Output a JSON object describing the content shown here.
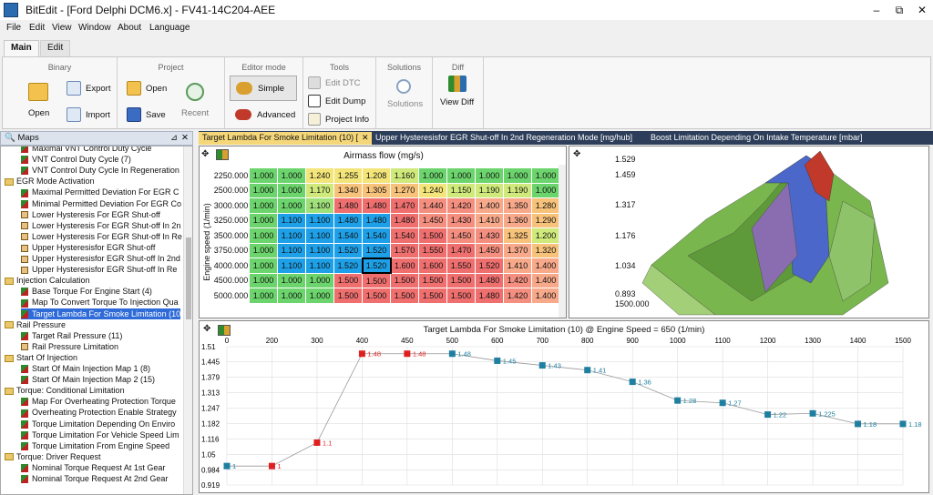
{
  "title": "BitEdit - [Ford Delphi DCM6.x] - FV41-14C204-AEE",
  "window_buttons": [
    "–",
    "⧉",
    "✕"
  ],
  "menu": [
    "File",
    "Edit",
    "View",
    "Window",
    "About",
    "Language"
  ],
  "ribbon_tabs": [
    "Main",
    "Edit"
  ],
  "ribbon": {
    "binary": {
      "title": "Binary",
      "open": "Open",
      "export": "Export",
      "import": "Import"
    },
    "project": {
      "title": "Project",
      "open": "Open",
      "save": "Save",
      "recent": "Recent"
    },
    "editor_mode": {
      "title": "Editor mode",
      "simple": "Simple",
      "advanced": "Advanced"
    },
    "tools": {
      "title": "Tools",
      "edit_dtc": "Edit DTC",
      "edit_dump": "Edit Dump",
      "project_info": "Project Info"
    },
    "solutions": {
      "title": "Solutions",
      "solutions": "Solutions"
    },
    "diff": {
      "title": "Diff",
      "view_diff": "View Diff"
    }
  },
  "maps_panel": {
    "title": "Maps",
    "items": [
      {
        "t": "map",
        "l": "Maximal VNT Control Duty Cycle"
      },
      {
        "t": "map",
        "l": "VNT Control Duty Cycle (7)"
      },
      {
        "t": "map",
        "l": "VNT Control Duty Cycle In Regeneration"
      },
      {
        "t": "folder",
        "l": "EGR Mode Activation"
      },
      {
        "t": "map",
        "l": "Maximal Permitted Deviation For EGR C"
      },
      {
        "t": "map",
        "l": "Minimal Permitted Deviation For EGR Co"
      },
      {
        "t": "table",
        "l": "Lower Hysteresis For EGR Shut-off"
      },
      {
        "t": "table",
        "l": "Lower Hysteresis For EGR Shut-off In 2n"
      },
      {
        "t": "table",
        "l": "Lower Hysteresis For EGR Shut-off In Re"
      },
      {
        "t": "table",
        "l": "Upper Hysteresisfor EGR Shut-off"
      },
      {
        "t": "table",
        "l": "Upper Hysteresisfor EGR Shut-off In 2nd"
      },
      {
        "t": "table",
        "l": "Upper Hysteresisfor EGR Shut-off In Re"
      },
      {
        "t": "folder",
        "l": "Injection Calculation"
      },
      {
        "t": "map",
        "l": "Base Torque For Engine Start (4)"
      },
      {
        "t": "map",
        "l": "Map To Convert Torque To Injection Qua"
      },
      {
        "t": "map",
        "l": "Target Lambda For Smoke Limitation (10"
      },
      {
        "t": "folder",
        "l": "Rail Pressure"
      },
      {
        "t": "map",
        "l": "Target Rail Pressure (11)"
      },
      {
        "t": "table",
        "l": "Rail Pressure Limitation"
      },
      {
        "t": "folder",
        "l": "Start Of Injection"
      },
      {
        "t": "map",
        "l": "Start Of Main Injection Map 1 (8)"
      },
      {
        "t": "map",
        "l": "Start Of Main Injection Map 2 (15)"
      },
      {
        "t": "folder",
        "l": "Torque: Conditional Limitation"
      },
      {
        "t": "map",
        "l": "Map For Overheating Protection Torque"
      },
      {
        "t": "map",
        "l": "Overheating Protection Enable Strategy"
      },
      {
        "t": "map",
        "l": "Torque Limitation Depending On Enviro"
      },
      {
        "t": "map",
        "l": "Torque Limitation For Vehicle Speed Lim"
      },
      {
        "t": "map",
        "l": "Torque Limitation From Engine Speed"
      },
      {
        "t": "folder",
        "l": "Torque: Driver Request"
      },
      {
        "t": "map",
        "l": "Nominal Torque Request At 1st Gear"
      },
      {
        "t": "map",
        "l": "Nominal Torque Request At 2nd Gear"
      }
    ]
  },
  "doc_tabs": [
    "Target Lambda For Smoke Limitation (10) [",
    "✕",
    "Upper Hysteresisfor EGR Shut-off In 2nd Regeneration Mode [mg/hub]",
    "Boost Limitation Depending On Intake Temperature [mbar]"
  ],
  "grid": {
    "x_title": "Airmass flow (mg/s)",
    "y_title": "Engine speed (1/min)",
    "rows": [
      {
        "rpm": "2250.000",
        "v": [
          "1.000",
          "1.000",
          "1.240",
          "1.255",
          "1.208",
          "1.160",
          "1.000",
          "1.000",
          "1.000",
          "1.000",
          "1.000"
        ]
      },
      {
        "rpm": "2500.000",
        "v": [
          "1.000",
          "1.000",
          "1.170",
          "1.340",
          "1.305",
          "1.270",
          "1.240",
          "1.150",
          "1.190",
          "1.190",
          "1.000"
        ]
      },
      {
        "rpm": "3000.000",
        "v": [
          "1.000",
          "1.000",
          "1.100",
          "1.480",
          "1.480",
          "1.470",
          "1.440",
          "1.420",
          "1.400",
          "1.350",
          "1.280"
        ]
      },
      {
        "rpm": "3250.000",
        "v": [
          "1.000",
          "1.100",
          "1.100",
          "1.480",
          "1.480",
          "1.480",
          "1.450",
          "1.430",
          "1.410",
          "1.360",
          "1.290"
        ]
      },
      {
        "rpm": "3500.000",
        "v": [
          "1.000",
          "1.100",
          "1.100",
          "1.540",
          "1.540",
          "1.540",
          "1.500",
          "1.450",
          "1.430",
          "1.325",
          "1.200"
        ]
      },
      {
        "rpm": "3750.000",
        "v": [
          "1.000",
          "1.100",
          "1.100",
          "1.520",
          "1.520",
          "1.570",
          "1.550",
          "1.470",
          "1.450",
          "1.370",
          "1.320"
        ]
      },
      {
        "rpm": "4000.000",
        "v": [
          "1.000",
          "1.100",
          "1.100",
          "1.520",
          "1.520",
          "1.600",
          "1.600",
          "1.550",
          "1.520",
          "1.410",
          "1.400"
        ]
      },
      {
        "rpm": "4500.000",
        "v": [
          "1.000",
          "1.000",
          "1.000",
          "1.500",
          "1.500",
          "1.500",
          "1.500",
          "1.500",
          "1.480",
          "1.420",
          "1.400"
        ]
      },
      {
        "rpm": "5000.000",
        "v": [
          "1.000",
          "1.000",
          "1.000",
          "1.500",
          "1.500",
          "1.500",
          "1.500",
          "1.500",
          "1.480",
          "1.420",
          "1.400"
        ]
      }
    ]
  },
  "view3d": {
    "z_ticks": [
      "1.529",
      "1.459",
      "1.317",
      "1.176",
      "1.034",
      "0.893"
    ],
    "y_tick": "1500.000"
  },
  "chart_data": {
    "type": "line",
    "title": "Target Lambda For Smoke Limitation (10) @ Engine Speed = 650 (1/min)",
    "x_ticks": [
      "0",
      "200",
      "300",
      "400",
      "450",
      "500",
      "600",
      "700",
      "800",
      "900",
      "1000",
      "1100",
      "1200",
      "1300",
      "1400",
      "1500"
    ],
    "y_ticks": [
      "1.51",
      "1.445",
      "1.379",
      "1.313",
      "1.247",
      "1.182",
      "1.116",
      "1.05",
      "0.984",
      "0.919"
    ],
    "ylim": [
      0.919,
      1.51
    ],
    "points": [
      {
        "label": "1",
        "y": 1,
        "c": "blue"
      },
      {
        "label": "1",
        "y": 1,
        "c": "red"
      },
      {
        "label": "1.1",
        "y": 1.1,
        "c": "red"
      },
      {
        "label": "1.48",
        "y": 1.48,
        "c": "red"
      },
      {
        "label": "1.48",
        "y": 1.48,
        "c": "red"
      },
      {
        "label": "1.48",
        "y": 1.48,
        "c": "blue"
      },
      {
        "label": "1.45",
        "y": 1.45,
        "c": "blue"
      },
      {
        "label": "1.43",
        "y": 1.43,
        "c": "blue"
      },
      {
        "label": "1.41",
        "y": 1.41,
        "c": "blue"
      },
      {
        "label": "1.36",
        "y": 1.36,
        "c": "blue"
      },
      {
        "label": "1.28",
        "y": 1.28,
        "c": "blue"
      },
      {
        "label": "1.27",
        "y": 1.27,
        "c": "blue"
      },
      {
        "label": "1.22",
        "y": 1.22,
        "c": "blue"
      },
      {
        "label": "1.225",
        "y": 1.225,
        "c": "blue"
      },
      {
        "label": "1.18",
        "y": 1.18,
        "c": "blue"
      },
      {
        "label": "1.18",
        "y": 1.18,
        "c": "blue"
      }
    ]
  }
}
